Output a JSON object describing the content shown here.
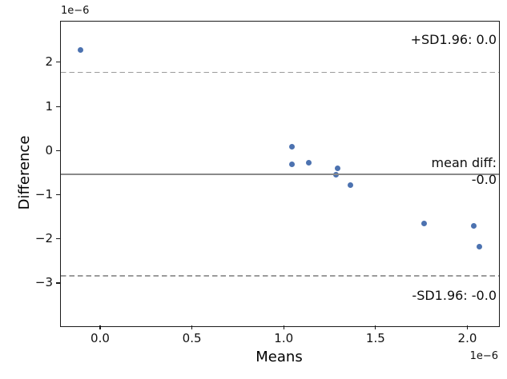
{
  "chart_data": {
    "type": "scatter",
    "kind": "bland-altman-mean-difference-plot",
    "title": "",
    "xlabel": "Means",
    "ylabel": "Difference",
    "x_offset_label": "1e−6",
    "y_offset_label": "1e−6",
    "units_multiplier": 1e-06,
    "xlim": [
      -0.218,
      2.168
    ],
    "ylim": [
      -3.96,
      2.94
    ],
    "grid": false,
    "legend": false,
    "point_color": "#4c72b0",
    "x_ticks": {
      "values": [
        0,
        0.5,
        1.0,
        1.5,
        2.0
      ],
      "labels": [
        "0.0",
        "0.5",
        "1.0",
        "1.5",
        "2.0"
      ]
    },
    "y_ticks": {
      "values": [
        2,
        1,
        0,
        -1,
        -2,
        -3
      ],
      "labels": [
        "2",
        "1",
        "0",
        "−1",
        "−2",
        "−3"
      ]
    },
    "points": [
      {
        "x": -0.11,
        "y": 2.29
      },
      {
        "x": 1.04,
        "y": 0.11
      },
      {
        "x": 1.04,
        "y": -0.3
      },
      {
        "x": 1.13,
        "y": -0.25
      },
      {
        "x": 1.29,
        "y": -0.38
      },
      {
        "x": 1.28,
        "y": -0.52
      },
      {
        "x": 1.36,
        "y": -0.77
      },
      {
        "x": 1.76,
        "y": -1.64
      },
      {
        "x": 2.03,
        "y": -1.68
      },
      {
        "x": 2.06,
        "y": -2.15
      }
    ],
    "lines": [
      {
        "name": "upper-limit",
        "value": 1.79,
        "style": "dashed",
        "color": "#9b9b9b"
      },
      {
        "name": "mean-diff",
        "value": -0.52,
        "style": "solid",
        "color": "#8a8a8a"
      },
      {
        "name": "lower-limit",
        "value": -2.82,
        "style": "dashed",
        "color": "#9b9b9b"
      }
    ],
    "annotations": {
      "upper": "+SD1.96: 0.0",
      "mean_line1": "mean diff:",
      "mean_line2": "-0.0",
      "lower": "-SD1.96: -0.0"
    }
  }
}
